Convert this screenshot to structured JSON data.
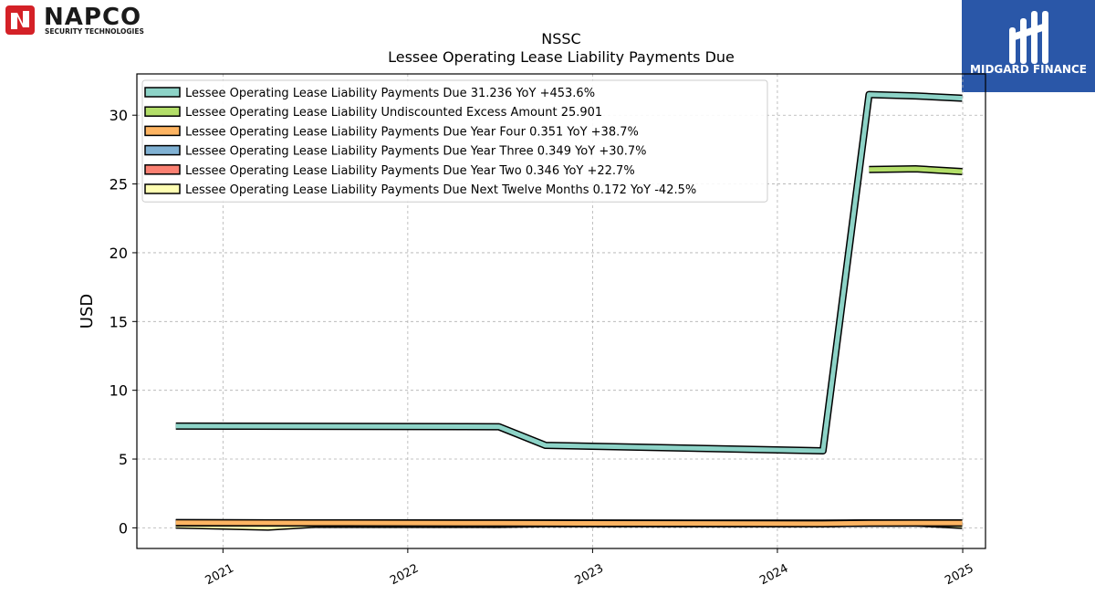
{
  "logos": {
    "left_brand": "NAPCO",
    "left_tagline": "SECURITY TECHNOLOGIES",
    "right_brand": "MIDGARD FINANCE"
  },
  "chart_data": {
    "type": "line",
    "title": "NSSC",
    "subtitle": "Lessee Operating Lease Liability Payments Due",
    "xlabel": "",
    "ylabel": "USD",
    "xlim": [
      "2020-07-15",
      "2025-02-15"
    ],
    "ylim": [
      -1.5,
      33
    ],
    "x_ticks": [
      "2021",
      "2022",
      "2023",
      "2024",
      "2025"
    ],
    "y_ticks": [
      0,
      5,
      10,
      15,
      20,
      25,
      30
    ],
    "grid": true,
    "legend_position": "upper-left",
    "series": [
      {
        "name": "Lessee Operating Lease Liability Payments Due",
        "legend_label": "Lessee Operating Lease Liability Payments Due  31.236 YoY +453.6%",
        "color": "#8dd3c7",
        "x": [
          "2020-09-30",
          "2022-06-30",
          "2022-09-30",
          "2024-03-31",
          "2024-06-30",
          "2024-09-30",
          "2024-12-31"
        ],
        "y": [
          7.4,
          7.35,
          6.0,
          5.6,
          31.5,
          31.4,
          31.236
        ]
      },
      {
        "name": "Lessee Operating Lease Liability Undiscounted Excess Amount",
        "legend_label": "Lessee Operating Lease Liability Undiscounted Excess Amount  25.901",
        "color": "#b3de69",
        "x": [
          "2024-06-30",
          "2024-09-30",
          "2024-12-31"
        ],
        "y": [
          26.05,
          26.1,
          25.901
        ]
      },
      {
        "name": "Lessee Operating Lease Liability Payments Due Year Four",
        "legend_label": "Lessee Operating Lease Liability Payments Due Year Four  0.351 YoY +38.7%",
        "color": "#fdb462",
        "x": [
          "2020-09-30",
          "2021-06-30",
          "2022-06-30",
          "2022-09-30",
          "2024-03-31",
          "2024-06-30",
          "2024-09-30",
          "2024-12-31"
        ],
        "y": [
          0.38,
          0.36,
          0.34,
          0.33,
          0.3,
          0.34,
          0.35,
          0.351
        ]
      },
      {
        "name": "Lessee Operating Lease Liability Payments Due Year Three",
        "legend_label": "Lessee Operating Lease Liability Payments Due Year Three  0.349 YoY +30.7%",
        "color": "#80b1d3",
        "x": [
          "2020-09-30",
          "2021-06-30",
          "2022-06-30",
          "2022-09-30",
          "2024-03-31",
          "2024-06-30",
          "2024-09-30",
          "2024-12-31"
        ],
        "y": [
          0.36,
          0.35,
          0.34,
          0.34,
          0.31,
          0.34,
          0.35,
          0.349
        ]
      },
      {
        "name": "Lessee Operating Lease Liability Payments Due Year Two",
        "legend_label": "Lessee Operating Lease Liability Payments Due Year Two  0.346 YoY +22.7%",
        "color": "#fb8072",
        "x": [
          "2020-09-30",
          "2021-03-31",
          "2022-06-30",
          "2022-09-30",
          "2024-03-31",
          "2024-06-30",
          "2024-09-30",
          "2024-12-31"
        ],
        "y": [
          0.37,
          0.36,
          0.35,
          0.35,
          0.34,
          0.36,
          0.36,
          0.346
        ]
      },
      {
        "name": "Lessee Operating Lease Liability Payments Due Next Twelve Months",
        "legend_label": "Lessee Operating Lease Liability Payments Due Next Twelve Months  0.172 YoY -42.5%",
        "color": "#ffffb3",
        "x": [
          "2020-09-30",
          "2021-03-31",
          "2021-06-30",
          "2022-06-30",
          "2022-09-30",
          "2024-03-31",
          "2024-06-30",
          "2024-09-30",
          "2024-12-31"
        ],
        "y": [
          0.2,
          0.05,
          0.25,
          0.25,
          0.3,
          0.3,
          0.35,
          0.35,
          0.172
        ]
      }
    ]
  }
}
